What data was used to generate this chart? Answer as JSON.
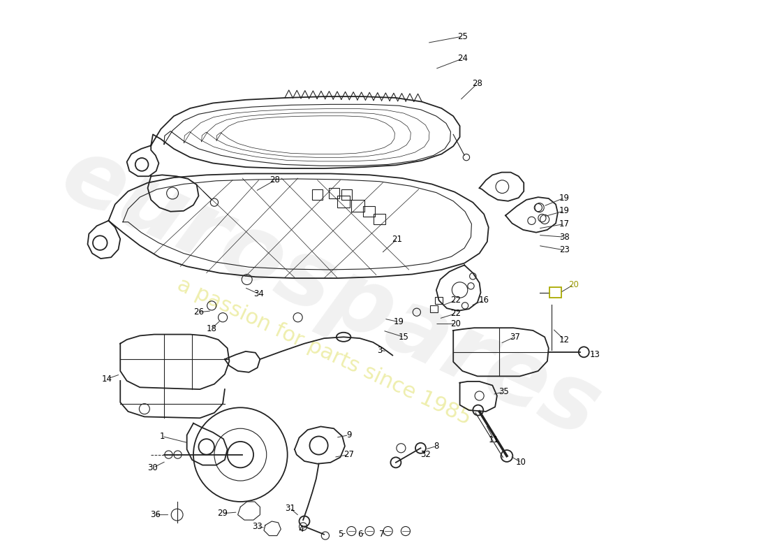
{
  "bg_color": "#ffffff",
  "line_color": "#222222",
  "watermark1": "eurospares",
  "watermark2": "a passion for parts since 1985",
  "fig_width": 11.0,
  "fig_height": 8.0,
  "dpi": 100
}
